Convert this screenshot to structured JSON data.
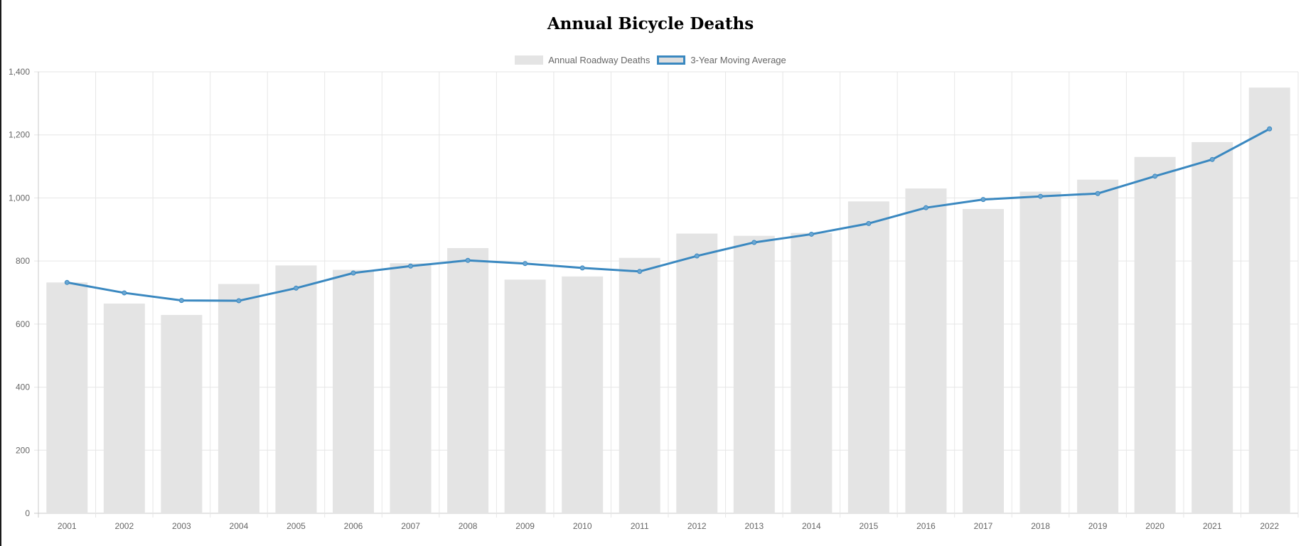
{
  "chart_data": {
    "type": "bar",
    "title": "Annual Bicycle Deaths",
    "categories": [
      "2001",
      "2002",
      "2003",
      "2004",
      "2005",
      "2006",
      "2007",
      "2008",
      "2009",
      "2010",
      "2011",
      "2012",
      "2013",
      "2014",
      "2015",
      "2016",
      "2017",
      "2018",
      "2019",
      "2020",
      "2021",
      "2022"
    ],
    "series": [
      {
        "name": "Annual Roadway Deaths",
        "type": "bar",
        "color": "#e4e4e4",
        "values": [
          732,
          665,
          629,
          727,
          786,
          772,
          793,
          841,
          741,
          751,
          810,
          887,
          880,
          889,
          989,
          1030,
          965,
          1020,
          1058,
          1130,
          1177,
          1350
        ]
      },
      {
        "name": "3-Year Moving Average",
        "type": "line",
        "color": "#3a88c0",
        "values": [
          732,
          699,
          675,
          674,
          714,
          762,
          784,
          802,
          792,
          778,
          767,
          816,
          859,
          885,
          919,
          969,
          995,
          1005,
          1014,
          1069,
          1122,
          1219
        ]
      }
    ],
    "yticks": [
      "0",
      "200",
      "400",
      "600",
      "800",
      "1,000",
      "1,200",
      "1,400"
    ],
    "ylim": [
      0,
      1400
    ],
    "xlabel": "",
    "ylabel": "",
    "grid": true,
    "legend": "top-center"
  }
}
